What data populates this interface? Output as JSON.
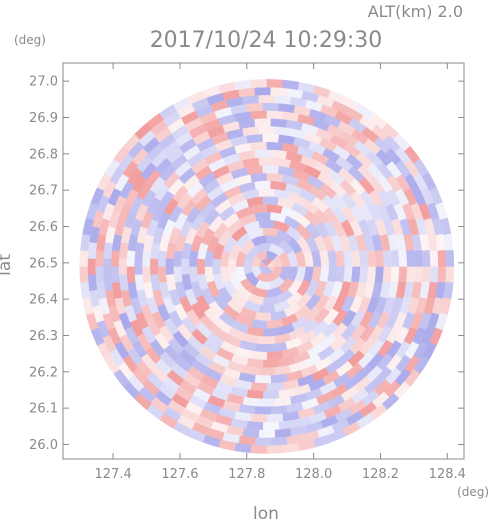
{
  "header": {
    "altitude_label": "ALT(km)  2.0",
    "timestamp": "2017/10/24  10:29:30"
  },
  "chart_data": {
    "type": "heatmap",
    "title": "2017/10/24  10:29:30",
    "subtitle": "ALT(km)  2.0",
    "xlabel": "lon",
    "ylabel": "lat",
    "x_unit": "(deg)",
    "y_unit": "(deg)",
    "xlim": [
      127.25,
      128.45
    ],
    "ylim": [
      25.96,
      27.05
    ],
    "xticks": [
      127.4,
      127.6,
      127.8,
      128.0,
      128.2,
      128.4
    ],
    "xtick_labels": [
      "127.4",
      "127.6",
      "127.8",
      "128.0",
      "128.2",
      "128.4"
    ],
    "yticks": [
      26.0,
      26.1,
      26.2,
      26.3,
      26.4,
      26.5,
      26.6,
      26.7,
      26.8,
      26.9,
      27.0
    ],
    "ytick_labels": [
      "26.0",
      "26.1",
      "26.2",
      "26.3",
      "26.4",
      "26.5",
      "26.6",
      "26.7",
      "26.8",
      "26.9",
      "27.0"
    ],
    "radar_center": {
      "lon": 127.86,
      "lat": 26.49
    },
    "radar_radius_deg": 0.56,
    "colors": {
      "positive": "#f08a8a",
      "negative": "#9a9ae8",
      "axis": "#8a8a8a",
      "background": "#ffffff"
    },
    "grid": false
  }
}
